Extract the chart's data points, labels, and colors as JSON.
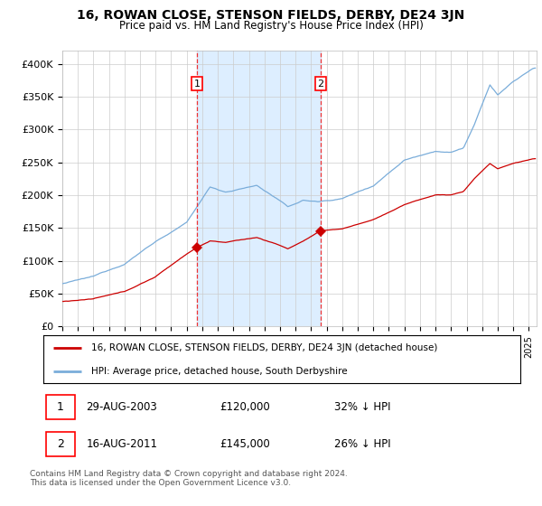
{
  "title": "16, ROWAN CLOSE, STENSON FIELDS, DERBY, DE24 3JN",
  "subtitle": "Price paid vs. HM Land Registry's House Price Index (HPI)",
  "ylabel_ticks": [
    "£0",
    "£50K",
    "£100K",
    "£150K",
    "£200K",
    "£250K",
    "£300K",
    "£350K",
    "£400K"
  ],
  "ytick_values": [
    0,
    50000,
    100000,
    150000,
    200000,
    250000,
    300000,
    350000,
    400000
  ],
  "ylim": [
    0,
    420000
  ],
  "xlim_start": 1995.0,
  "xlim_end": 2025.5,
  "sale1_date": 2003.66,
  "sale1_price": 120000,
  "sale1_label": "1",
  "sale2_date": 2011.62,
  "sale2_price": 145000,
  "sale2_label": "2",
  "legend_property": "16, ROWAN CLOSE, STENSON FIELDS, DERBY, DE24 3JN (detached house)",
  "legend_hpi": "HPI: Average price, detached house, South Derbyshire",
  "footer": "Contains HM Land Registry data © Crown copyright and database right 2024.\nThis data is licensed under the Open Government Licence v3.0.",
  "property_color": "#cc0000",
  "hpi_color": "#7aadda",
  "shaded_color": "#ddeeff",
  "vline_color": "#ee3333"
}
